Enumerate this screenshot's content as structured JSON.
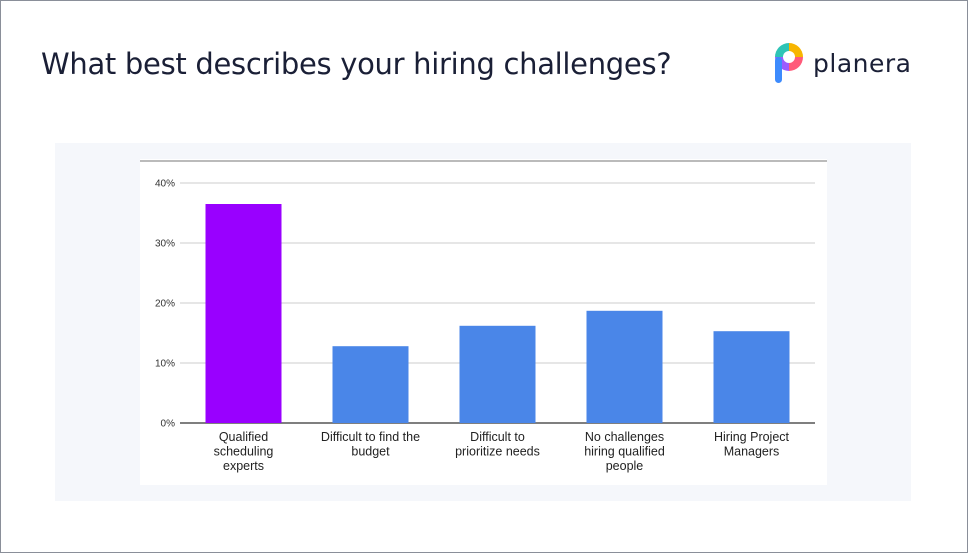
{
  "slide": {
    "title": "What best describes your hiring challenges?",
    "logo_text": "planera"
  },
  "colors": {
    "highlight_bar": "#9900ff",
    "bar": "#4a86e8",
    "gridline": "#cccccc",
    "text": "#1a1f36"
  },
  "chart_data": {
    "type": "bar",
    "categories": [
      [
        "Qualified",
        "scheduling",
        "experts"
      ],
      [
        "Difficult to find the",
        "budget"
      ],
      [
        "Difficult to",
        "prioritize needs"
      ],
      [
        "No challenges",
        "hiring qualified",
        "people"
      ],
      [
        "Hiring Project",
        "Managers"
      ]
    ],
    "values": [
      36.5,
      12.8,
      16.2,
      18.7,
      15.3
    ],
    "highlight_index": 0,
    "ylim": [
      0,
      40
    ],
    "yticks": [
      0,
      10,
      20,
      30,
      40
    ],
    "ytick_labels": [
      "0%",
      "10%",
      "20%",
      "30%",
      "40%"
    ],
    "grid": true,
    "legend": "none"
  }
}
